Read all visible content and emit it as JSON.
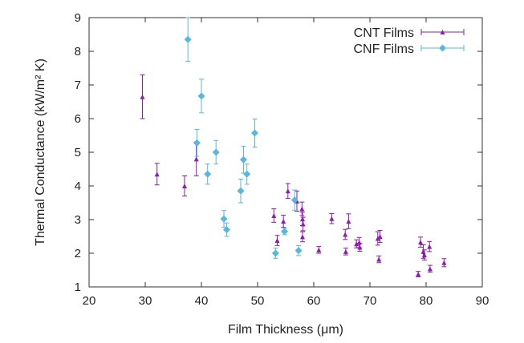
{
  "chart_data": {
    "type": "scatter",
    "xlabel": "Film Thickness (μm)",
    "ylabel": "Thermal Conductance (kW/m² K)",
    "xlim": [
      20,
      90
    ],
    "ylim": [
      1,
      9
    ],
    "x_ticks": [
      "20",
      "30",
      "40",
      "50",
      "60",
      "70",
      "80",
      "90"
    ],
    "y_ticks": [
      "1",
      "2",
      "3",
      "4",
      "5",
      "6",
      "7",
      "8",
      "9"
    ],
    "grid": false,
    "legend_position": "top-right",
    "error_bars": "vertical",
    "series": [
      {
        "name": "CNT Films",
        "color": "#8e1cb2",
        "marker": "triangle",
        "points": [
          [
            29.5,
            6.65,
            0.65
          ],
          [
            32.1,
            4.35,
            0.32
          ],
          [
            37.0,
            4.0,
            0.3
          ],
          [
            39.1,
            4.8,
            0.5
          ],
          [
            52.9,
            3.12,
            0.2
          ],
          [
            53.5,
            2.38,
            0.15
          ],
          [
            54.6,
            2.95,
            0.18
          ],
          [
            55.4,
            3.85,
            0.22
          ],
          [
            57.0,
            3.55,
            0.3
          ],
          [
            57.9,
            3.32,
            0.2
          ],
          [
            58.0,
            3.02,
            0.2
          ],
          [
            58.1,
            2.87,
            0.2
          ],
          [
            58.0,
            2.49,
            0.15
          ],
          [
            60.9,
            2.1,
            0.1
          ],
          [
            63.2,
            3.03,
            0.15
          ],
          [
            65.6,
            2.56,
            0.15
          ],
          [
            65.7,
            2.05,
            0.1
          ],
          [
            66.2,
            2.95,
            0.22
          ],
          [
            67.6,
            2.28,
            0.12
          ],
          [
            68.1,
            2.32,
            0.15
          ],
          [
            68.2,
            2.18,
            0.12
          ],
          [
            71.4,
            2.44,
            0.2
          ],
          [
            71.8,
            2.5,
            0.18
          ],
          [
            71.6,
            1.82,
            0.1
          ],
          [
            78.6,
            1.38,
            0.08
          ],
          [
            79.0,
            2.33,
            0.15
          ],
          [
            79.5,
            2.05,
            0.2
          ],
          [
            79.7,
            1.95,
            0.15
          ],
          [
            80.6,
            2.2,
            0.15
          ],
          [
            80.7,
            1.54,
            0.1
          ],
          [
            83.2,
            1.72,
            0.12
          ]
        ]
      },
      {
        "name": "CNF Films",
        "color": "#56b8e1",
        "marker": "diamond",
        "points": [
          [
            37.6,
            8.35,
            0.65
          ],
          [
            39.2,
            5.28,
            0.4
          ],
          [
            40.0,
            6.67,
            0.5
          ],
          [
            41.1,
            4.35,
            0.3
          ],
          [
            42.6,
            5.0,
            0.35
          ],
          [
            44.0,
            3.02,
            0.25
          ],
          [
            44.5,
            2.7,
            0.2
          ],
          [
            47.0,
            3.85,
            0.35
          ],
          [
            47.5,
            4.78,
            0.4
          ],
          [
            48.1,
            4.35,
            0.3
          ],
          [
            49.5,
            5.57,
            0.42
          ],
          [
            53.2,
            2.0,
            0.15
          ],
          [
            54.8,
            2.65,
            0.1
          ],
          [
            56.6,
            3.58,
            0.3
          ],
          [
            57.3,
            2.08,
            0.15
          ]
        ]
      }
    ]
  }
}
